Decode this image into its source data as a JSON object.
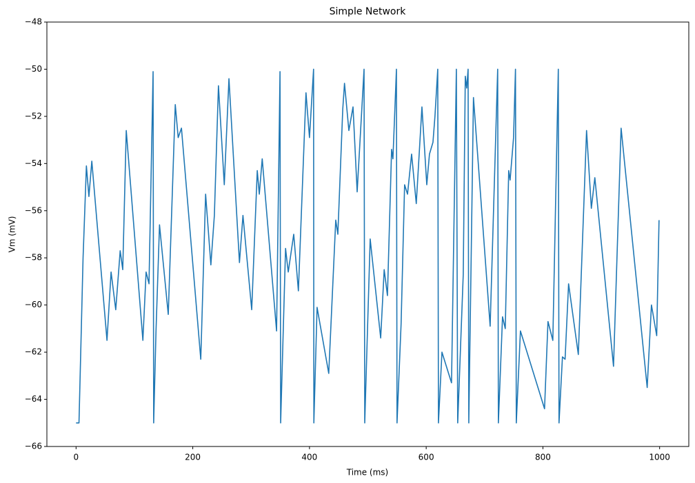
{
  "chart_data": {
    "type": "line",
    "title": "Simple Network",
    "x_label": "Time (ms)",
    "y_label": "Vm (mV)",
    "color": "#1f77b4",
    "x": [
      0,
      5,
      9,
      12,
      17.7,
      22,
      27,
      53,
      60,
      68,
      75.6,
      80,
      86,
      114.5,
      120,
      125,
      132,
      133,
      137,
      143,
      158,
      170,
      175,
      180.6,
      213.7,
      222,
      231,
      237,
      244,
      254,
      262,
      280,
      286,
      301,
      310.5,
      314,
      319,
      343.6,
      349.5,
      350.6,
      359,
      363.6,
      373,
      381,
      394,
      400,
      407,
      407.5,
      413,
      433,
      445,
      448.6,
      457,
      460,
      467.5,
      474.6,
      481.7,
      493.5,
      494.7,
      504,
      522,
      528,
      533.6,
      540.7,
      543,
      549,
      550,
      557,
      563,
      568,
      575,
      583,
      592.7,
      601,
      605.6,
      611.6,
      615,
      619.8,
      621,
      627,
      643.4,
      651.7,
      654,
      663.5,
      667,
      669.4,
      671.8,
      673,
      681,
      709.6,
      722.5,
      723.7,
      730.8,
      735.5,
      741.4,
      743.8,
      749.7,
      753,
      754.4,
      761.5,
      802.8,
      808.7,
      817,
      826.4,
      827.6,
      833.5,
      838,
      844,
      860.7,
      874.8,
      883,
      889,
      921,
      934,
      978.7,
      986,
      995,
      999
    ],
    "values": [
      -65,
      -65,
      -61,
      -58,
      -54.1,
      -55.4,
      -53.9,
      -61.5,
      -58.6,
      -60.2,
      -57.7,
      -58.5,
      -52.6,
      -61.5,
      -58.6,
      -59.1,
      -50.1,
      -65,
      -61.1,
      -56.6,
      -60.4,
      -51.5,
      -52.9,
      -52.5,
      -62.3,
      -55.3,
      -58.3,
      -56.2,
      -50.7,
      -54.9,
      -50.4,
      -58.2,
      -56.2,
      -60.2,
      -54.3,
      -55.3,
      -53.8,
      -61.1,
      -50.1,
      -65,
      -57.6,
      -58.6,
      -57,
      -59.4,
      -51,
      -52.9,
      -50,
      -65,
      -60.1,
      -62.9,
      -56.4,
      -57,
      -51.7,
      -50.6,
      -52.6,
      -51.6,
      -55.2,
      -50,
      -65,
      -57.2,
      -61.4,
      -58.5,
      -59.6,
      -53.4,
      -53.8,
      -50,
      -65,
      -60.8,
      -54.9,
      -55.3,
      -53.6,
      -55.7,
      -51.6,
      -54.9,
      -53.6,
      -53.1,
      -52,
      -50,
      -65,
      -62,
      -63.3,
      -50,
      -65,
      -58.7,
      -50.3,
      -50.8,
      -50,
      -65,
      -51.2,
      -60.9,
      -50,
      -65,
      -60.5,
      -61,
      -54.3,
      -54.7,
      -52.9,
      -50,
      -65,
      -61.1,
      -64.4,
      -60.7,
      -61.5,
      -50,
      -65,
      -62.2,
      -62.3,
      -59.1,
      -62.1,
      -52.6,
      -55.9,
      -54.6,
      -62.6,
      -52.5,
      -63.5,
      -60,
      -61.3,
      -56.4
    ],
    "xlim": [
      -50,
      1050
    ],
    "ylim": [
      -66,
      -48
    ],
    "xticks": [
      0,
      200,
      400,
      600,
      800,
      1000
    ],
    "yticks": [
      {
        "value": -66,
        "label": "−66"
      },
      {
        "value": -64,
        "label": "−64"
      },
      {
        "value": -62,
        "label": "−62"
      },
      {
        "value": -60,
        "label": "−60"
      },
      {
        "value": -58,
        "label": "−58"
      },
      {
        "value": -56,
        "label": "−56"
      },
      {
        "value": -54,
        "label": "−54"
      },
      {
        "value": -52,
        "label": "−52"
      },
      {
        "value": -50,
        "label": "−50"
      },
      {
        "value": -48,
        "label": "−48"
      }
    ],
    "grid": false
  }
}
